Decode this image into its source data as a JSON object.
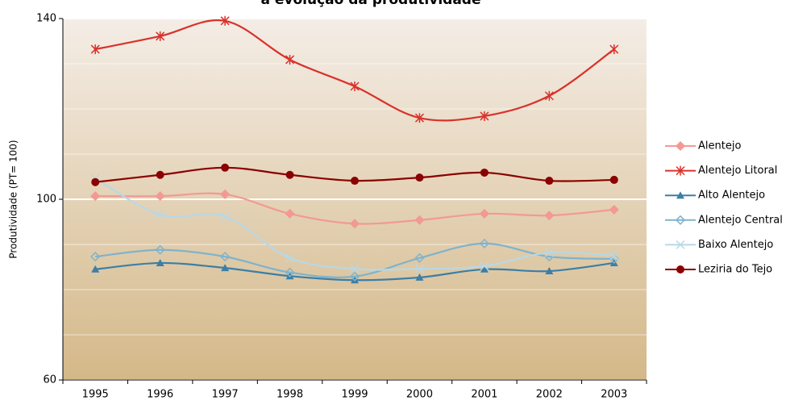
{
  "chart_data": {
    "type": "line",
    "title": "a evolução da produtividade",
    "y_label": "Produtividade (PT= 100)",
    "categories": [
      "1995",
      "1996",
      "1997",
      "1998",
      "1999",
      "2000",
      "2001",
      "2002",
      "2003"
    ],
    "ylim": [
      60,
      140
    ],
    "yticks": [
      60,
      100,
      140
    ],
    "minor_yticks": [
      70,
      80,
      90,
      110,
      120,
      130
    ],
    "grid": true,
    "smooth": true,
    "legend": "right",
    "series": [
      {
        "name": "Alentejo",
        "color": "#f29a92",
        "marker": "diamond",
        "values": [
          100.7,
          100.7,
          101.1,
          96.8,
          94.6,
          95.4,
          96.8,
          96.4,
          97.7
        ]
      },
      {
        "name": "Alentejo Litoral",
        "color": "#d9322b",
        "marker": "star",
        "values": [
          133.2,
          136.1,
          139.5,
          130.9,
          125,
          118,
          118.4,
          122.9,
          133.2
        ]
      },
      {
        "name": "Alto Alentejo",
        "color": "#3b7fa6",
        "marker": "triangle",
        "values": [
          84.5,
          85.9,
          84.8,
          83,
          82.1,
          82.7,
          84.5,
          84.1,
          85.9
        ]
      },
      {
        "name": "Alentejo Central",
        "color": "#7fb3cc",
        "marker": "open-diamond",
        "values": [
          87.3,
          88.8,
          87.3,
          83.8,
          82.9,
          87,
          90.2,
          87.3,
          86.8
        ]
      },
      {
        "name": "Baixo Alentejo",
        "color": "#b8d8e6",
        "marker": "x",
        "values": [
          104.6,
          96.6,
          96.2,
          87,
          84.6,
          84.6,
          85.2,
          88.2,
          87.5
        ]
      },
      {
        "name": "Leziria do Tejo",
        "color": "#8b0000",
        "marker": "circle",
        "values": [
          103.8,
          105.4,
          107,
          105.4,
          104.1,
          104.8,
          105.9,
          104.1,
          104.3
        ]
      }
    ]
  }
}
